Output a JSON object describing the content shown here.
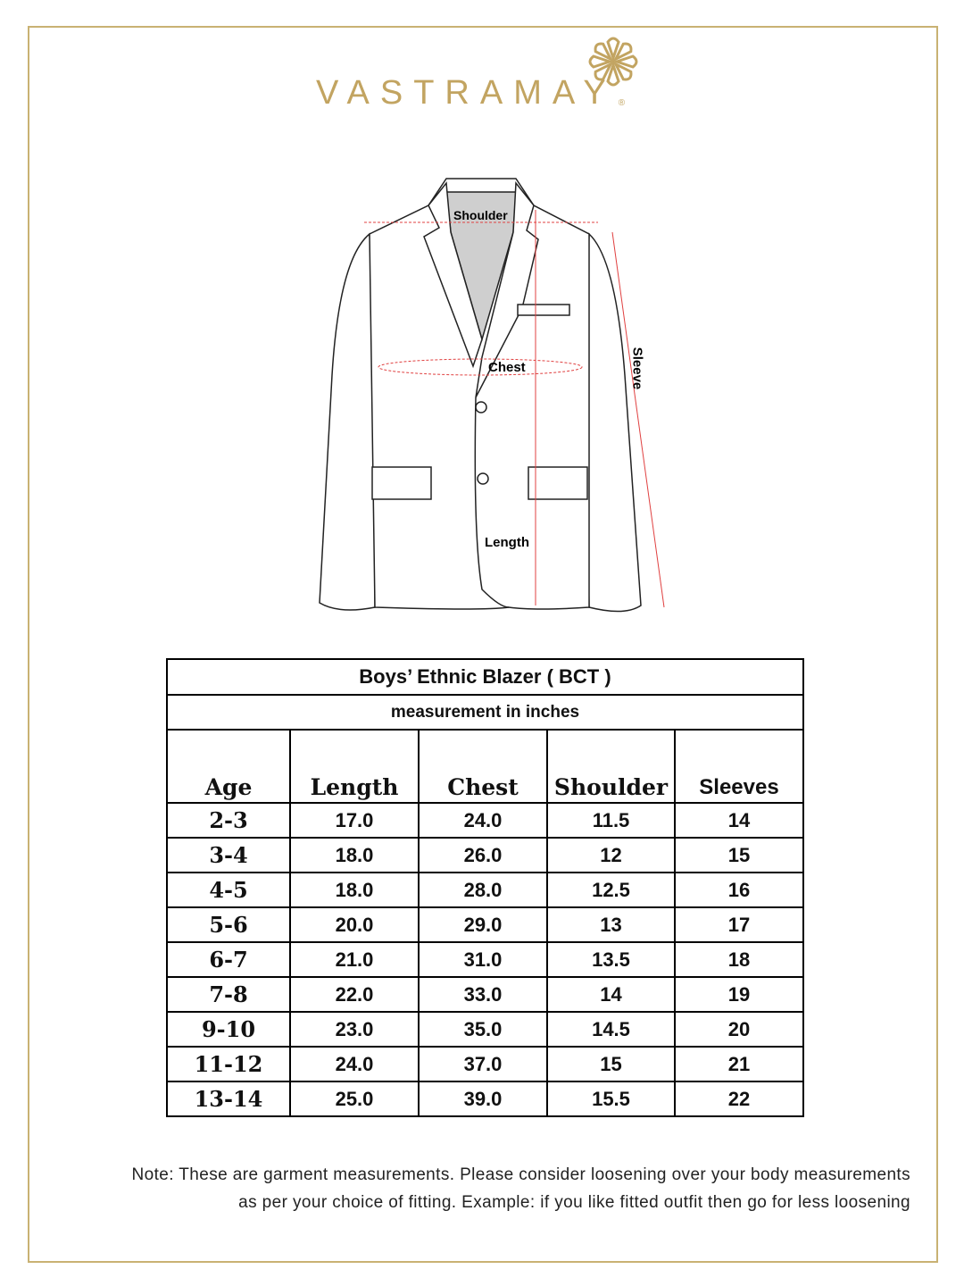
{
  "brand": {
    "name": "VASTRAMAY",
    "registered": "®",
    "color": "#c2a461"
  },
  "diagram": {
    "labels": {
      "shoulder": "Shoulder",
      "chest": "Chest",
      "length": "Length",
      "sleeve": "Sleeve"
    }
  },
  "table": {
    "title": "Boys’ Ethnic Blazer ( BCT )",
    "subtitle": "measurement in inches",
    "headers": [
      "Age",
      "Length",
      "Chest",
      "Shoulder",
      "Sleeves"
    ],
    "rows": [
      [
        "2-3",
        "17.0",
        "24.0",
        "11.5",
        "14"
      ],
      [
        "3-4",
        "18.0",
        "26.0",
        "12",
        "15"
      ],
      [
        "4-5",
        "18.0",
        "28.0",
        "12.5",
        "16"
      ],
      [
        "5-6",
        "20.0",
        "29.0",
        "13",
        "17"
      ],
      [
        "6-7",
        "21.0",
        "31.0",
        "13.5",
        "18"
      ],
      [
        "7-8",
        "22.0",
        "33.0",
        "14",
        "19"
      ],
      [
        "9-10",
        "23.0",
        "35.0",
        "14.5",
        "20"
      ],
      [
        "11-12",
        "24.0",
        "37.0",
        "15",
        "21"
      ],
      [
        "13-14",
        "25.0",
        "39.0",
        "15.5",
        "22"
      ]
    ]
  },
  "note": {
    "line1": "Note: These are garment measurements. Please consider loosening over your body measurements",
    "line2": "as per your choice of fitting. Example: if you like fitted outfit then go for less loosening"
  }
}
